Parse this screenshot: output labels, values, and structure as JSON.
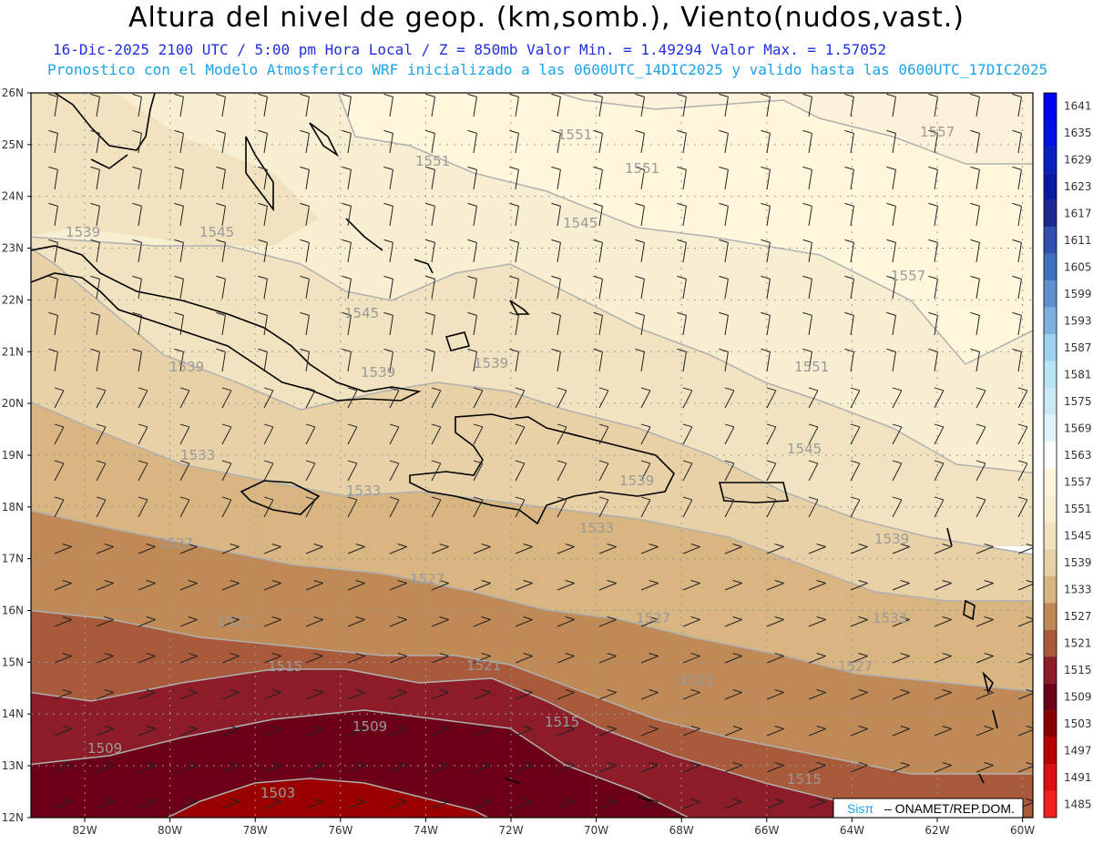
{
  "header": {
    "title": "Altura del nivel de geop. (km,somb.), Viento(nudos,vast.)",
    "line1": "16-Dic-2025   2100 UTC / 5:00 pm Hora Local / Z = 850mb     Valor Min. = 1.49294  Valor Max. = 1.57052",
    "line2": "Pronostico con el Modelo Atmosferico WRF inicializado a las 0600UTC_14DIC2025 y valido hasta las  0600UTC_17DIC2025"
  },
  "map": {
    "lat_labels": [
      "26N",
      "25N",
      "24N",
      "23N",
      "22N",
      "21N",
      "20N",
      "19N",
      "18N",
      "17N",
      "16N",
      "15N",
      "14N",
      "13N",
      "12N"
    ],
    "lon_labels": [
      "82W",
      "80W",
      "78W",
      "76W",
      "74W",
      "72W",
      "70W",
      "68W",
      "66W",
      "64W",
      "62W",
      "60W"
    ],
    "contour_labels": [
      "1551",
      "1557",
      "1551",
      "1551",
      "1545",
      "1557",
      "1539",
      "1545",
      "1545",
      "1551",
      "1539",
      "1539",
      "1539",
      "1545",
      "1539",
      "1533",
      "1533",
      "1539",
      "1533",
      "1527",
      "1527",
      "1527",
      "1533",
      "1521",
      "1521",
      "1527",
      "1515",
      "1521",
      "1509",
      "1515",
      "1509",
      "1515",
      "1503"
    ],
    "land_color": "#000000",
    "grid_color": "#aaaaaa"
  },
  "colorbar": {
    "levels": [
      "1641",
      "1635",
      "1629",
      "1623",
      "1617",
      "1611",
      "1605",
      "1599",
      "1593",
      "1587",
      "1581",
      "1575",
      "1569",
      "1563",
      "1557",
      "1551",
      "1545",
      "1539",
      "1533",
      "1527",
      "1521",
      "1515",
      "1509",
      "1503",
      "1497",
      "1491",
      "1485"
    ],
    "colors": [
      "#0000ff",
      "#0010e0",
      "#0820c0",
      "#0a1aa0",
      "#1a2a90",
      "#3050b0",
      "#4070c0",
      "#6090d0",
      "#80b0e0",
      "#a0d0f0",
      "#b8e4f4",
      "#cce9f6",
      "#dff3fa",
      "#ffffff",
      "#fff6dc",
      "#f8eed2",
      "#f1e2c0",
      "#e8d1a6",
      "#d9b581",
      "#c08a56",
      "#a85a3a",
      "#8b1c28",
      "#6b0018",
      "#8a0000",
      "#b80000",
      "#d81010",
      "#f52020"
    ]
  },
  "credit": {
    "sis": "Sisπ",
    "org": "– ONAMET/REP.DOM."
  }
}
